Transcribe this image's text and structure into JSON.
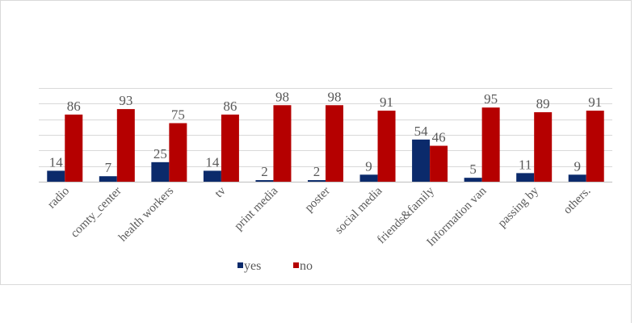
{
  "chart_data": {
    "type": "bar",
    "categories": [
      "radio",
      "comty_center",
      "health workers",
      "tv",
      "print media",
      "poster",
      "social media",
      "friends&family",
      "Information van",
      "passing by",
      "others."
    ],
    "series": [
      {
        "name": "yes",
        "values": [
          14,
          7,
          25,
          14,
          2,
          2,
          9,
          54,
          5,
          11,
          9
        ],
        "color": "#0b2a6b"
      },
      {
        "name": "no",
        "values": [
          86,
          93,
          75,
          86,
          98,
          98,
          91,
          46,
          95,
          89,
          91
        ],
        "color": "#b50000"
      }
    ],
    "ylim": [
      0,
      120
    ],
    "grid": true,
    "legend": "bottom",
    "data_labels": true
  }
}
